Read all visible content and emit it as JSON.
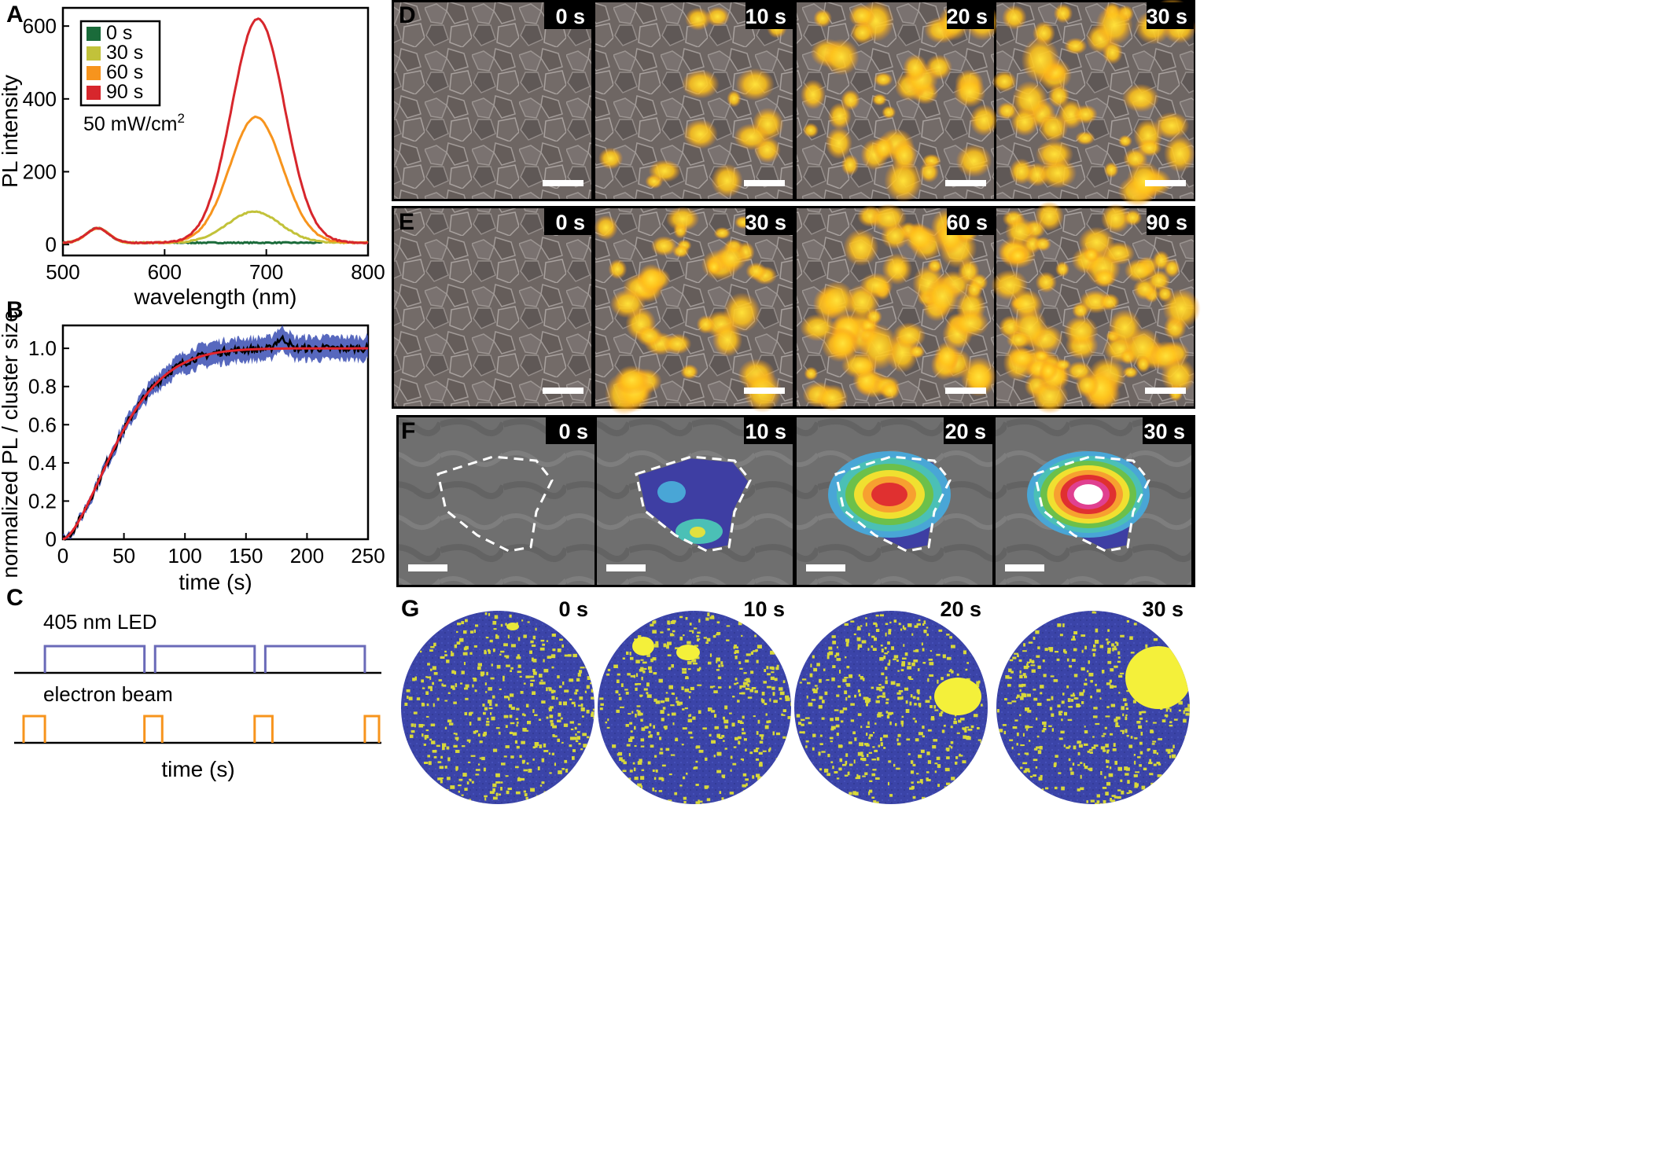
{
  "panel_letters": {
    "a": "A",
    "b": "B",
    "c": "C",
    "d": "D",
    "e": "E",
    "f": "F",
    "g": "G"
  },
  "colors": {
    "c0": "#1a6b3a",
    "c30": "#c2c23a",
    "c60": "#f7941d",
    "c90": "#d7262c",
    "blue_band": "#3a4db3",
    "fit": "#e3242b",
    "data": "#000000",
    "led": "#6a6ab8",
    "ebeam": "#f7941d",
    "sim_blue": "#3b44a8",
    "sim_yellow": "#e8e83a"
  },
  "chart_data": [
    {
      "id": "A",
      "type": "line",
      "xlabel": "wavelength (nm)",
      "ylabel": "PL intensity",
      "xlim": [
        500,
        800
      ],
      "ylim": [
        -30,
        650
      ],
      "xticks": [
        "500",
        "600",
        "700",
        "800"
      ],
      "yticks": [
        "0",
        "200",
        "400",
        "600"
      ],
      "annotation": "50 mW/cm",
      "annotation_sup": "2",
      "legend_position": "top-left",
      "series": [
        {
          "name": "0 s",
          "color": "#1a6b3a",
          "peak": 0,
          "peak_x": 690,
          "width": 26
        },
        {
          "name": "30 s",
          "color": "#c2c23a",
          "peak": 85,
          "peak_x": 688,
          "width": 26
        },
        {
          "name": "60 s",
          "color": "#f7941d",
          "peak": 345,
          "peak_x": 690,
          "width": 26
        },
        {
          "name": "90 s",
          "color": "#d7262c",
          "peak": 615,
          "peak_x": 692,
          "width": 26
        }
      ],
      "shoulder": {
        "x": 534,
        "height": 40,
        "width": 11
      },
      "baseline": 5
    },
    {
      "id": "B",
      "type": "line",
      "xlabel": "time (s)",
      "ylabel": "normalized PL / cluster size",
      "xlim": [
        0,
        250
      ],
      "ylim": [
        0,
        1.12
      ],
      "xticks": [
        "0",
        "50",
        "100",
        "150",
        "200",
        "250"
      ],
      "yticks": [
        "0",
        "0.2",
        "0.4",
        "0.6",
        "0.8",
        "1.0"
      ],
      "fit_tau": 55,
      "fit_power": 1.6
    },
    {
      "id": "C",
      "type": "timing",
      "led_label": "405 nm LED",
      "ebeam_label": "electron beam",
      "xlabel": "time (s)",
      "led_pulses": [
        [
          0.06,
          0.34
        ],
        [
          0.37,
          0.65
        ],
        [
          0.68,
          0.96
        ]
      ],
      "ebeam_pulses": [
        [
          0.0,
          0.06
        ],
        [
          0.34,
          0.39
        ],
        [
          0.65,
          0.7
        ],
        [
          0.96,
          1.0
        ]
      ]
    }
  ],
  "panel_d": {
    "times": [
      "0 s",
      "10 s",
      "20 s",
      "30 s"
    ],
    "density": [
      0,
      14,
      34,
      40
    ]
  },
  "panel_e": {
    "times": [
      "0 s",
      "30 s",
      "60 s",
      "90 s"
    ],
    "density": [
      0,
      38,
      62,
      70
    ]
  },
  "panel_f": {
    "times": [
      "0 s",
      "10 s",
      "20 s",
      "30 s"
    ]
  },
  "panel_g": {
    "times": [
      "0 s",
      "10 s",
      "20 s",
      "30 s"
    ]
  }
}
